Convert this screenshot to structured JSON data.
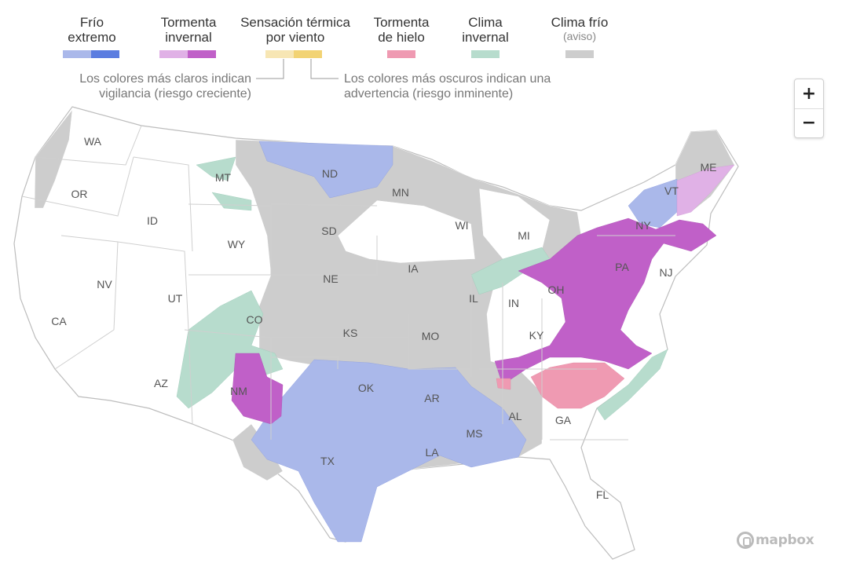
{
  "legend": {
    "items": [
      {
        "line1": "Frío",
        "line2": "extremo",
        "sub": "",
        "light": "#aab8ea",
        "dark": "#5b7de0"
      },
      {
        "line1": "Tormenta",
        "line2": "invernal",
        "sub": "",
        "light": "#e0b1e6",
        "dark": "#c060c8"
      },
      {
        "line1": "Sensación térmica",
        "line2": "por viento",
        "sub": "",
        "light": "#f7e6b4",
        "dark": "#f2d374"
      },
      {
        "line1": "Tormenta",
        "line2": "de hielo",
        "sub": "",
        "light": "#ef9ab2",
        "dark": ""
      },
      {
        "line1": "Clima",
        "line2": "invernal",
        "sub": "",
        "light": "#b7dccd",
        "dark": ""
      },
      {
        "line1": "Clima frío",
        "line2": "",
        "sub": "(aviso)",
        "light": "#cdcdcd",
        "dark": ""
      }
    ],
    "note_light": "Los colores más claros indican vigilancia (riesgo creciente)",
    "note_dark": "Los colores más oscuros indican una advertencia (riesgo inminente)"
  },
  "zoom": {
    "in_label": "+",
    "out_label": "−"
  },
  "map": {
    "states": [
      "WA",
      "OR",
      "CA",
      "ID",
      "NV",
      "MT",
      "WY",
      "UT",
      "AZ",
      "CO",
      "NM",
      "ND",
      "SD",
      "NE",
      "KS",
      "OK",
      "TX",
      "MN",
      "IA",
      "MO",
      "AR",
      "LA",
      "WI",
      "IL",
      "MS",
      "MI",
      "IN",
      "KY",
      "AL",
      "GA",
      "FL",
      "OH",
      "PA",
      "NY",
      "VT",
      "ME",
      "NJ"
    ],
    "colors": {
      "extreme_cold": "#aab8ea",
      "winter_storm": "#c060c8",
      "winter_storm_watch": "#e0b1e6",
      "ice_storm": "#ef9ab2",
      "winter_weather": "#b7dccd",
      "cold_advisory": "#cdcdcd",
      "land": "#ffffff",
      "borders": "#cccccc"
    }
  },
  "attribution": "mapbox"
}
